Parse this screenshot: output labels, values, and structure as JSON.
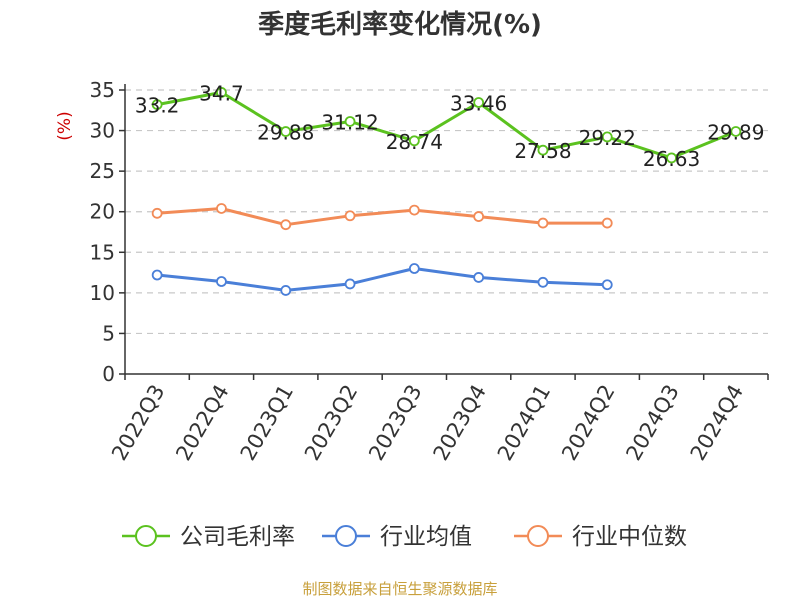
{
  "chart_data": {
    "type": "line",
    "title": "季度毛利率变化情况(%)",
    "ylabel": "(%)",
    "xlabel": "",
    "categories": [
      "2022Q3",
      "2022Q4",
      "2023Q1",
      "2023Q2",
      "2023Q3",
      "2023Q4",
      "2024Q1",
      "2024Q2",
      "2024Q3",
      "2024Q4"
    ],
    "ylim": [
      0,
      35
    ],
    "yticks": [
      0,
      5,
      10,
      15,
      20,
      25,
      30,
      35
    ],
    "grid": true,
    "legend_position": "bottom",
    "series": [
      {
        "name": "公司毛利率",
        "color": "#5bc21f",
        "values": [
          33.2,
          34.7,
          29.88,
          31.12,
          28.74,
          33.46,
          27.58,
          29.22,
          26.63,
          29.89
        ],
        "labels": [
          "33.2",
          "34.7",
          "29.88",
          "31.12",
          "28.74",
          "33.46",
          "27.58",
          "29.22",
          "26.63",
          "29.89"
        ]
      },
      {
        "name": "行业均值",
        "color": "#4a7fd8",
        "values": [
          12.2,
          11.4,
          10.3,
          11.1,
          13.0,
          11.9,
          11.3,
          11.0,
          null,
          null
        ]
      },
      {
        "name": "行业中位数",
        "color": "#f28b57",
        "values": [
          19.8,
          20.4,
          18.4,
          19.5,
          20.2,
          19.4,
          18.6,
          18.6,
          null,
          null
        ]
      }
    ]
  },
  "source": "制图数据来自恒生聚源数据库",
  "colors": {
    "axis": "#333333",
    "grid": "#c8c8c8",
    "ylabel": "#cc0000"
  }
}
